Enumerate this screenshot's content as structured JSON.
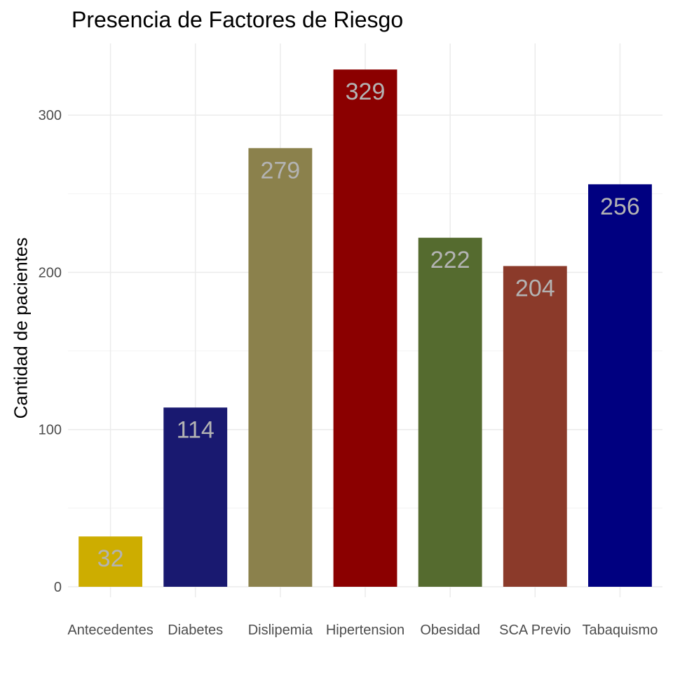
{
  "chart_data": {
    "type": "bar",
    "title": "Presencia de Factores de Riesgo",
    "xlabel": "",
    "ylabel": "Cantidad de pacientes",
    "categories": [
      "Antecedentes",
      "Diabetes",
      "Dislipemia",
      "Hipertension",
      "Obesidad",
      "SCA Previo",
      "Tabaquismo"
    ],
    "values": [
      32,
      114,
      279,
      329,
      222,
      204,
      256
    ],
    "data_labels": [
      "32",
      "114",
      "279",
      "329",
      "222",
      "204",
      "256"
    ],
    "colors": [
      "#cdad00",
      "#191970",
      "#8b814c",
      "#8b0000",
      "#556b2f",
      "#8b3a2a",
      "#000080"
    ],
    "label_color": "#b3b3b3",
    "ylim": [
      0,
      340
    ],
    "yticks": [
      0,
      100,
      200,
      300
    ],
    "ytick_labels": [
      "0",
      "100",
      "200",
      "300"
    ],
    "grid": true,
    "legend": "none"
  }
}
